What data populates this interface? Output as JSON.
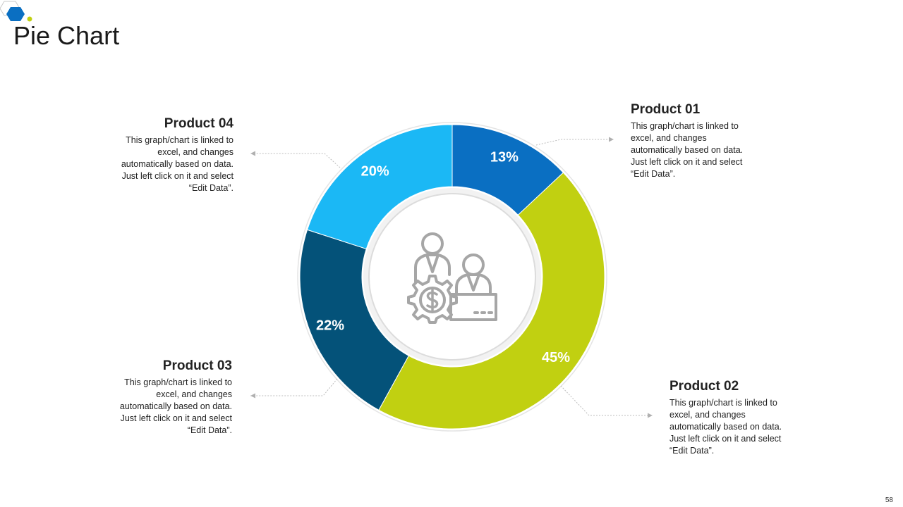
{
  "page": {
    "title": "Pie Chart",
    "slide_number": "58"
  },
  "colors": {
    "product_01": "#0a6fc2",
    "product_02": "#c1d011",
    "product_03": "#045279",
    "product_04": "#1bb8f5",
    "icon": "#a6a6a6",
    "logo_blue": "#0a6fc2",
    "logo_green": "#c1d011"
  },
  "icon": {
    "center": "business-people-with-dollar-gear-icon"
  },
  "callouts": {
    "product_01": {
      "heading": "Product 01",
      "desc": "This graph/chart is linked to excel, and changes automatically based on data. Just left click on it and select “Edit Data”."
    },
    "product_02": {
      "heading": "Product 02",
      "desc": "This graph/chart is linked to excel, and changes automatically based on data. Just left click on it and select “Edit Data”."
    },
    "product_03": {
      "heading": "Product 03",
      "desc": "This graph/chart is linked to excel, and changes automatically based on data. Just left click on it and select “Edit Data”."
    },
    "product_04": {
      "heading": "Product 04",
      "desc": "This graph/chart is linked to excel, and changes automatically based on data. Just left click on it and select “Edit Data”."
    }
  },
  "chart_data": {
    "type": "pie",
    "style": "donut",
    "start": "top, clockwise",
    "slices": [
      {
        "name": "Product 01",
        "value": 13,
        "label": "13%",
        "color": "#0a6fc2"
      },
      {
        "name": "Product 02",
        "value": 45,
        "label": "45%",
        "color": "#c1d011"
      },
      {
        "name": "Product 03",
        "value": 22,
        "label": "22%",
        "color": "#045279"
      },
      {
        "name": "Product 04",
        "value": 20,
        "label": "20%",
        "color": "#1bb8f5"
      }
    ]
  }
}
